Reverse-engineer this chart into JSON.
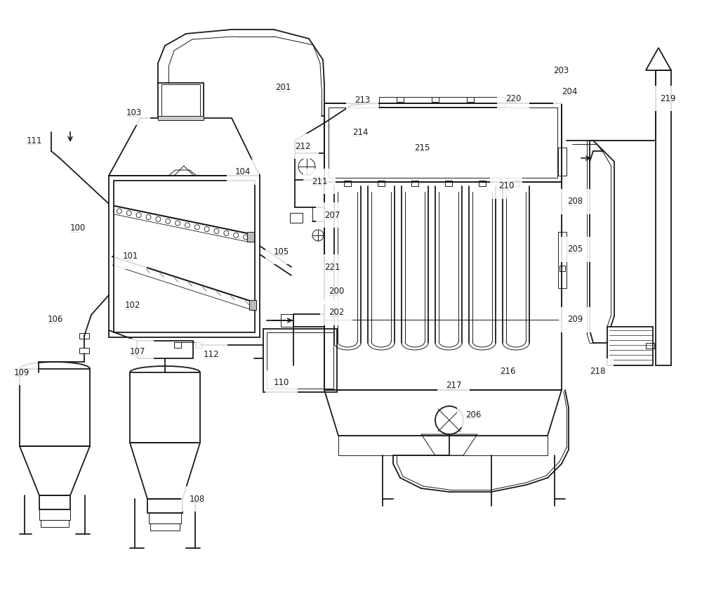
{
  "bg_color": "#ffffff",
  "line_color": "#1a1a1a",
  "lw": 1.3,
  "tlw": 0.7,
  "figsize": [
    10.0,
    8.61
  ],
  "dpi": 100,
  "label_fs": 8.5
}
